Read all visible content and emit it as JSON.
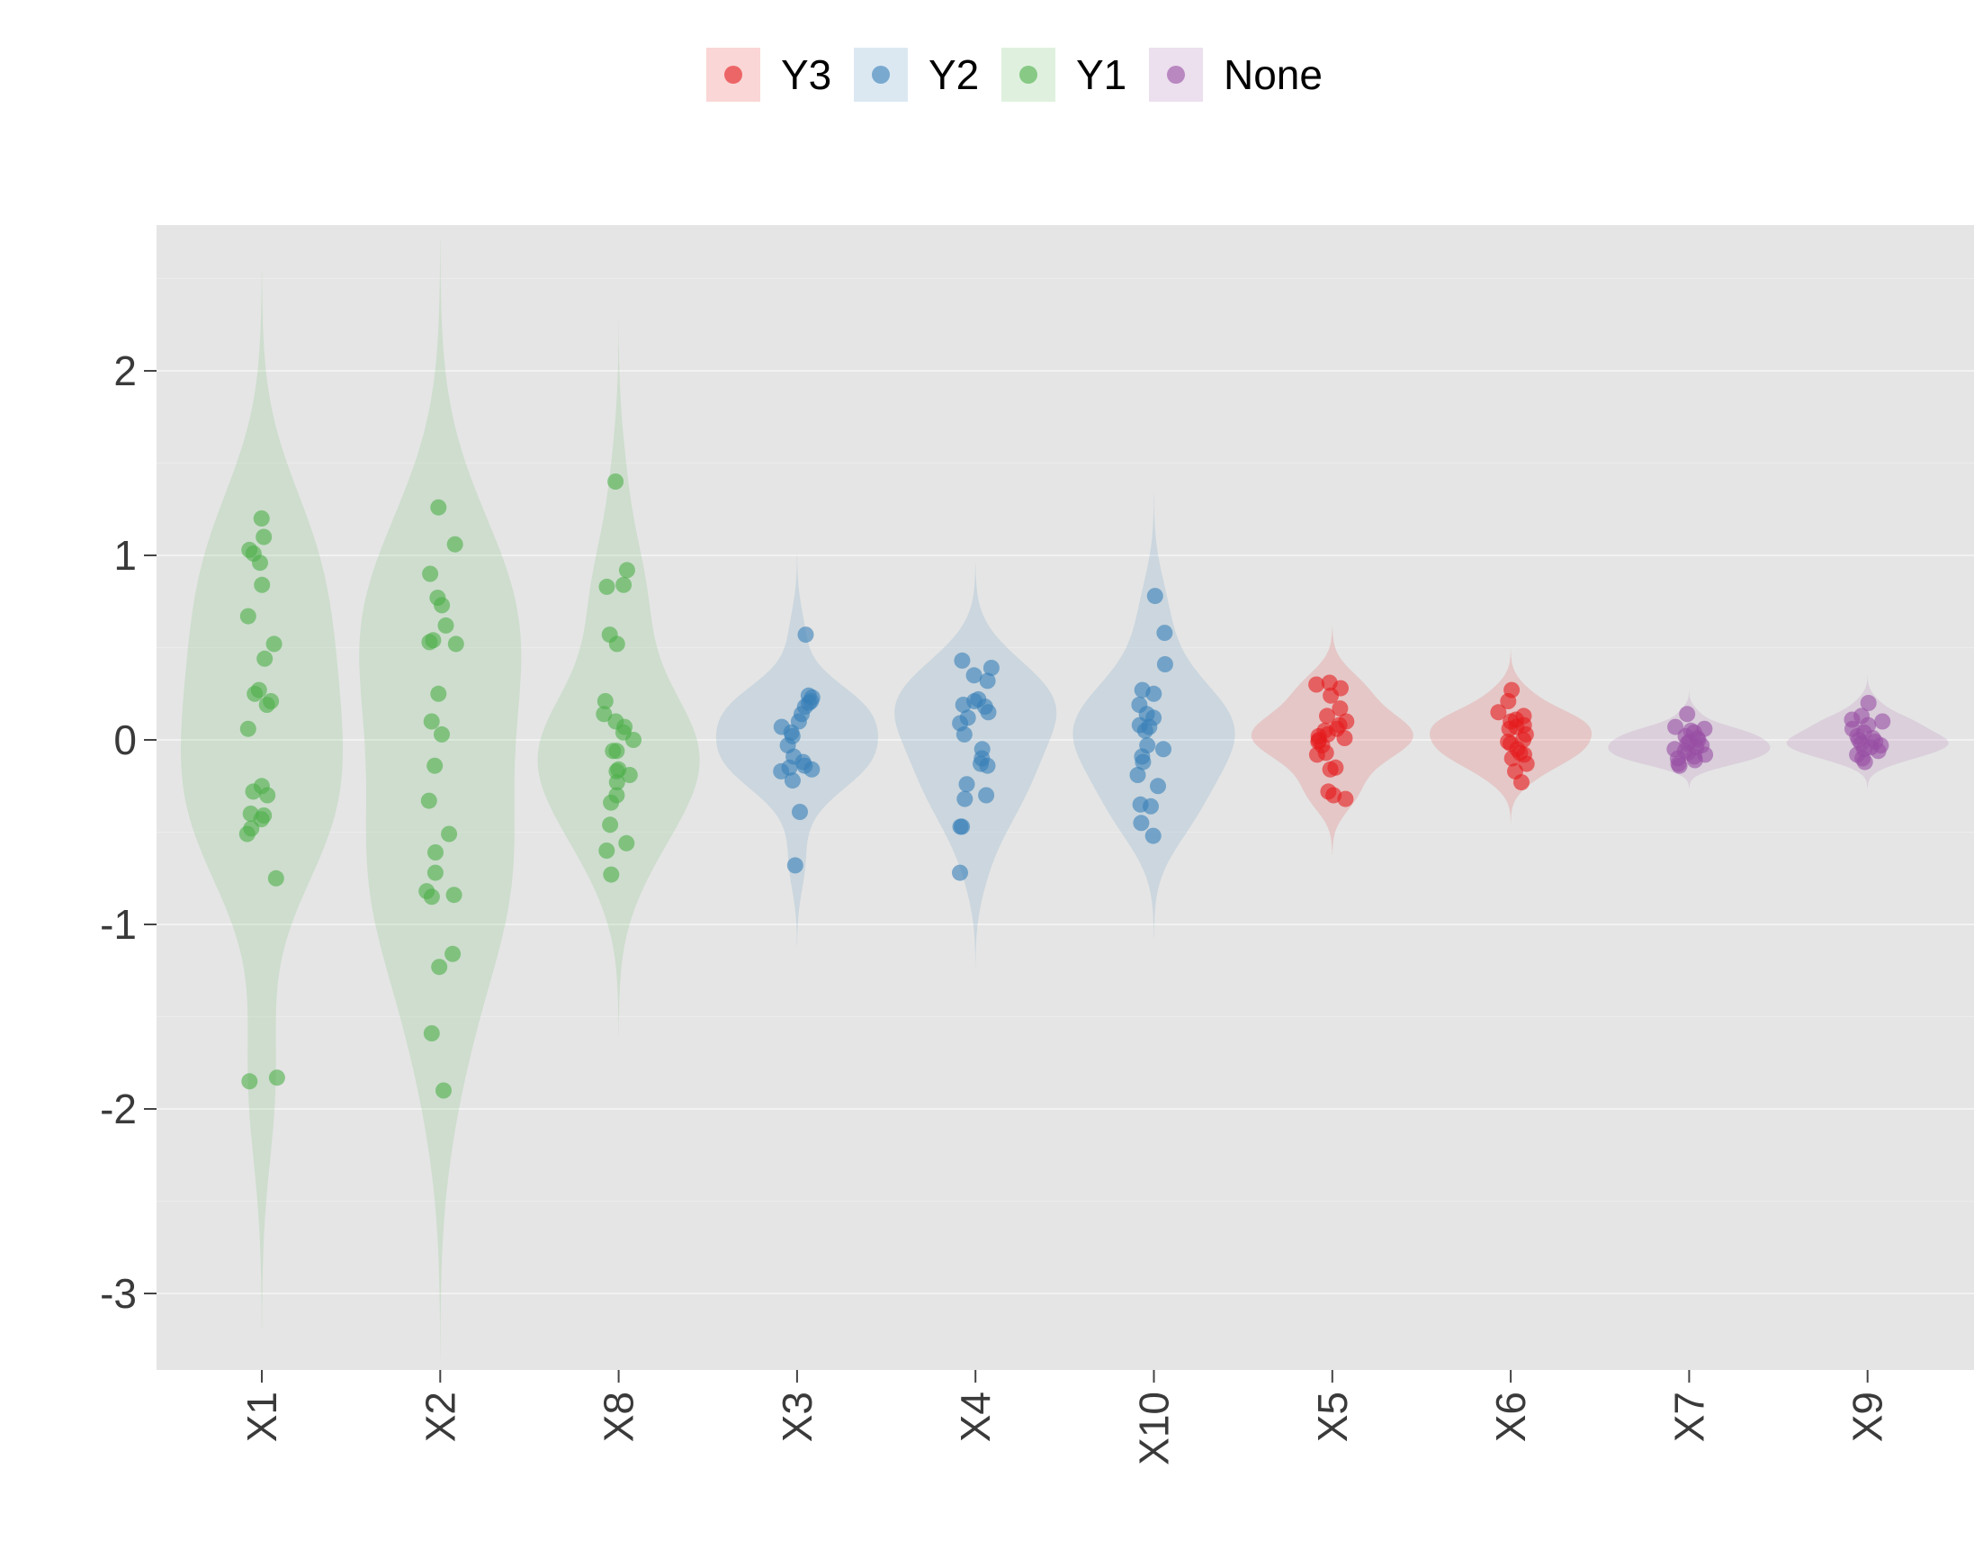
{
  "chart_data": {
    "type": "violin",
    "y_ticks": [
      2,
      1,
      0,
      -1,
      -2,
      -3
    ],
    "y_tick_labels": [
      "2",
      "1",
      "0",
      "-1",
      "-2",
      "-3"
    ],
    "ylim": [
      -3.4,
      2.6
    ],
    "grid": true,
    "legend_position": "top",
    "legend": [
      {
        "label": "Y3",
        "color": "#e41a1c"
      },
      {
        "label": "Y2",
        "color": "#377eb8"
      },
      {
        "label": "Y1",
        "color": "#4daf4a"
      },
      {
        "label": "None",
        "color": "#984ea3"
      }
    ],
    "categories": [
      {
        "name": "X1",
        "group": "Y1",
        "color": "#4daf4a",
        "points": [
          1.2,
          1.1,
          1.03,
          1.01,
          0.96,
          0.84,
          0.67,
          0.52,
          0.44,
          0.27,
          0.25,
          0.21,
          0.19,
          0.06,
          -0.25,
          -0.28,
          -0.3,
          -0.4,
          -0.41,
          -0.43,
          -0.48,
          -0.51,
          -0.75,
          -1.83,
          -1.85
        ]
      },
      {
        "name": "X2",
        "group": "Y1",
        "color": "#4daf4a",
        "points": [
          1.26,
          1.06,
          0.9,
          0.77,
          0.73,
          0.62,
          0.54,
          0.53,
          0.52,
          0.25,
          0.1,
          0.03,
          -0.14,
          -0.33,
          -0.51,
          -0.61,
          -0.72,
          -0.82,
          -0.84,
          -0.85,
          -1.16,
          -1.23,
          -1.59,
          -1.9
        ]
      },
      {
        "name": "X8",
        "group": "Y1",
        "color": "#4daf4a",
        "points": [
          1.4,
          0.92,
          0.84,
          0.83,
          0.57,
          0.52,
          0.21,
          0.14,
          0.1,
          0.07,
          0.04,
          0.0,
          -0.06,
          -0.06,
          -0.16,
          -0.17,
          -0.19,
          -0.23,
          -0.3,
          -0.34,
          -0.46,
          -0.56,
          -0.6,
          -0.73
        ]
      },
      {
        "name": "X3",
        "group": "Y2",
        "color": "#377eb8",
        "points": [
          0.57,
          0.24,
          0.23,
          0.21,
          0.2,
          0.18,
          0.14,
          0.1,
          0.07,
          0.04,
          0.02,
          -0.03,
          -0.09,
          -0.12,
          -0.14,
          -0.15,
          -0.16,
          -0.17,
          -0.22,
          -0.39,
          -0.68
        ]
      },
      {
        "name": "X4",
        "group": "Y2",
        "color": "#377eb8",
        "points": [
          0.43,
          0.39,
          0.35,
          0.32,
          0.22,
          0.21,
          0.19,
          0.18,
          0.15,
          0.12,
          0.09,
          0.03,
          -0.05,
          -0.1,
          -0.13,
          -0.14,
          -0.24,
          -0.3,
          -0.32,
          -0.47,
          -0.47,
          -0.72
        ]
      },
      {
        "name": "X10",
        "group": "Y2",
        "color": "#377eb8",
        "points": [
          0.78,
          0.58,
          0.41,
          0.27,
          0.25,
          0.19,
          0.14,
          0.12,
          0.08,
          0.07,
          0.05,
          -0.03,
          -0.05,
          -0.09,
          -0.12,
          -0.19,
          -0.25,
          -0.35,
          -0.36,
          -0.45,
          -0.52
        ]
      },
      {
        "name": "X5",
        "group": "Y3",
        "color": "#e41a1c",
        "points": [
          0.31,
          0.3,
          0.28,
          0.24,
          0.17,
          0.13,
          0.1,
          0.08,
          0.06,
          0.05,
          0.03,
          0.02,
          0.01,
          0.0,
          -0.01,
          -0.03,
          -0.07,
          -0.08,
          -0.15,
          -0.16,
          -0.28,
          -0.3,
          -0.32
        ]
      },
      {
        "name": "X6",
        "group": "Y3",
        "color": "#e41a1c",
        "points": [
          0.27,
          0.21,
          0.15,
          0.13,
          0.11,
          0.1,
          0.08,
          0.07,
          0.06,
          0.03,
          0.0,
          -0.01,
          -0.02,
          -0.05,
          -0.07,
          -0.08,
          -0.1,
          -0.13,
          -0.17,
          -0.23
        ]
      },
      {
        "name": "X7",
        "group": "None",
        "color": "#984ea3",
        "points": [
          0.14,
          0.07,
          0.06,
          0.05,
          0.04,
          0.02,
          0.01,
          0.0,
          -0.01,
          -0.02,
          -0.03,
          -0.04,
          -0.05,
          -0.06,
          -0.07,
          -0.08,
          -0.09,
          -0.1,
          -0.11,
          -0.13,
          -0.14
        ]
      },
      {
        "name": "X9",
        "group": "None",
        "color": "#984ea3",
        "points": [
          0.2,
          0.13,
          0.11,
          0.1,
          0.08,
          0.06,
          0.04,
          0.02,
          0.01,
          0.0,
          -0.01,
          -0.02,
          -0.03,
          -0.04,
          -0.05,
          -0.06,
          -0.08,
          -0.1,
          -0.12
        ]
      }
    ]
  }
}
